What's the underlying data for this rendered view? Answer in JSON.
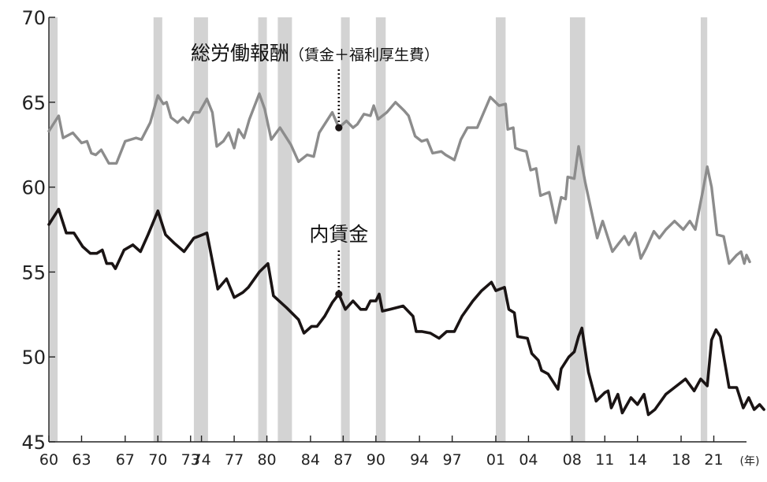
{
  "chart_data": {
    "type": "line",
    "x_unit": "(年)",
    "x_tick_labels": [
      "60",
      "63",
      "67",
      "70",
      "73",
      "74",
      "77",
      "80",
      "84",
      "87",
      "90",
      "94",
      "97",
      "01",
      "04",
      "08",
      "11",
      "14",
      "18",
      "21"
    ],
    "x_tick_years": [
      1960,
      1963,
      1967,
      1970,
      1973,
      1974,
      1977,
      1980,
      1984,
      1987,
      1990,
      1994,
      1997,
      2001,
      2004,
      2008,
      2011,
      2014,
      2018,
      2021
    ],
    "xlim": [
      1960,
      2024
    ],
    "ylim": [
      45,
      70
    ],
    "y_ticks": [
      45,
      50,
      55,
      60,
      65,
      70
    ],
    "recession_bands": [
      [
        1960.0,
        1960.8
      ],
      [
        1969.6,
        1970.4
      ],
      [
        1973.3,
        1974.6
      ],
      [
        1979.2,
        1980.0
      ],
      [
        1981.0,
        1982.3
      ],
      [
        1986.8,
        1987.6
      ],
      [
        1990.0,
        1990.9
      ],
      [
        2001.0,
        2001.9
      ],
      [
        2007.8,
        2009.2
      ],
      [
        2019.8,
        2020.4
      ]
    ],
    "series": [
      {
        "name": "総労働報酬",
        "name_suffix": "（賃金＋福利厚生費）",
        "color": "#8c8c8c",
        "points": [
          [
            1960.0,
            63.3
          ],
          [
            1960.9,
            64.2
          ],
          [
            1961.3,
            62.9
          ],
          [
            1962.2,
            63.2
          ],
          [
            1963.0,
            62.6
          ],
          [
            1963.5,
            62.7
          ],
          [
            1963.9,
            62.0
          ],
          [
            1964.3,
            61.9
          ],
          [
            1964.8,
            62.2
          ],
          [
            1965.5,
            61.4
          ],
          [
            1966.2,
            61.4
          ],
          [
            1967.0,
            62.7
          ],
          [
            1968.0,
            62.9
          ],
          [
            1968.5,
            62.8
          ],
          [
            1969.3,
            63.8
          ],
          [
            1970.0,
            65.4
          ],
          [
            1970.5,
            64.9
          ],
          [
            1970.8,
            65.0
          ],
          [
            1971.2,
            64.1
          ],
          [
            1971.8,
            63.8
          ],
          [
            1972.3,
            64.1
          ],
          [
            1972.8,
            63.8
          ],
          [
            1973.3,
            64.4
          ],
          [
            1973.8,
            64.4
          ],
          [
            1974.5,
            65.2
          ],
          [
            1975.0,
            64.4
          ],
          [
            1975.4,
            62.4
          ],
          [
            1976.0,
            62.7
          ],
          [
            1976.5,
            63.2
          ],
          [
            1977.0,
            62.3
          ],
          [
            1977.4,
            63.4
          ],
          [
            1977.9,
            62.9
          ],
          [
            1978.4,
            64.0
          ],
          [
            1979.3,
            65.5
          ],
          [
            1979.8,
            64.6
          ],
          [
            1980.4,
            62.8
          ],
          [
            1981.2,
            63.5
          ],
          [
            1982.2,
            62.5
          ],
          [
            1982.9,
            61.5
          ],
          [
            1983.7,
            61.9
          ],
          [
            1984.3,
            61.8
          ],
          [
            1984.8,
            63.2
          ],
          [
            1986.0,
            64.4
          ],
          [
            1986.6,
            63.5
          ],
          [
            1987.3,
            63.9
          ],
          [
            1987.9,
            63.5
          ],
          [
            1988.3,
            63.7
          ],
          [
            1988.9,
            64.3
          ],
          [
            1989.5,
            64.2
          ],
          [
            1989.8,
            64.8
          ],
          [
            1990.2,
            64.0
          ],
          [
            1991.0,
            64.4
          ],
          [
            1991.8,
            65.0
          ],
          [
            1992.6,
            64.5
          ],
          [
            1993.0,
            64.2
          ],
          [
            1993.6,
            63.0
          ],
          [
            1994.2,
            62.7
          ],
          [
            1994.7,
            62.8
          ],
          [
            1995.2,
            62.0
          ],
          [
            1996.0,
            62.1
          ],
          [
            1996.4,
            61.9
          ],
          [
            1997.2,
            61.6
          ],
          [
            1997.8,
            62.8
          ],
          [
            1998.4,
            63.5
          ],
          [
            1999.3,
            63.5
          ],
          [
            2000.5,
            65.3
          ],
          [
            2001.3,
            64.8
          ],
          [
            2001.9,
            64.9
          ],
          [
            2002.1,
            63.4
          ],
          [
            2002.6,
            63.5
          ],
          [
            2002.8,
            62.3
          ],
          [
            2003.2,
            62.2
          ],
          [
            2003.8,
            62.1
          ],
          [
            2004.2,
            61.0
          ],
          [
            2004.7,
            61.1
          ],
          [
            2005.1,
            59.5
          ],
          [
            2005.5,
            59.6
          ],
          [
            2005.9,
            59.7
          ],
          [
            2006.2,
            58.8
          ],
          [
            2006.5,
            57.9
          ],
          [
            2007.0,
            59.4
          ],
          [
            2007.4,
            59.3
          ],
          [
            2007.6,
            60.6
          ],
          [
            2008.2,
            60.5
          ],
          [
            2008.6,
            62.4
          ],
          [
            2009.2,
            60.3
          ],
          [
            2010.3,
            57.0
          ],
          [
            2010.8,
            58.0
          ],
          [
            2011.7,
            56.2
          ],
          [
            2012.3,
            56.7
          ],
          [
            2012.8,
            57.1
          ],
          [
            2013.2,
            56.6
          ],
          [
            2013.8,
            57.3
          ],
          [
            2014.3,
            55.8
          ],
          [
            2014.8,
            56.4
          ],
          [
            2015.5,
            57.4
          ],
          [
            2016.0,
            57.0
          ],
          [
            2016.6,
            57.5
          ],
          [
            2017.4,
            58.0
          ],
          [
            2018.2,
            57.5
          ],
          [
            2018.8,
            58.0
          ],
          [
            2019.3,
            57.5
          ],
          [
            2020.0,
            59.8
          ],
          [
            2020.4,
            61.2
          ],
          [
            2020.8,
            60.0
          ],
          [
            2021.3,
            57.2
          ],
          [
            2021.9,
            57.1
          ],
          [
            2022.4,
            55.5
          ],
          [
            2023.1,
            56.0
          ],
          [
            2023.5,
            56.2
          ],
          [
            2023.8,
            55.5
          ],
          [
            2024.0,
            56.0
          ],
          [
            2024.3,
            55.6
          ]
        ]
      },
      {
        "name": "内賃金",
        "color": "#1a1414",
        "points": [
          [
            1960.0,
            57.8
          ],
          [
            1960.9,
            58.7
          ],
          [
            1961.6,
            57.3
          ],
          [
            1962.3,
            57.3
          ],
          [
            1963.1,
            56.5
          ],
          [
            1963.8,
            56.1
          ],
          [
            1964.4,
            56.1
          ],
          [
            1964.9,
            56.3
          ],
          [
            1965.3,
            55.5
          ],
          [
            1965.8,
            55.5
          ],
          [
            1966.1,
            55.2
          ],
          [
            1966.9,
            56.3
          ],
          [
            1967.7,
            56.6
          ],
          [
            1968.4,
            56.2
          ],
          [
            1969.1,
            57.2
          ],
          [
            1970.0,
            58.6
          ],
          [
            1970.7,
            57.2
          ],
          [
            1971.5,
            56.7
          ],
          [
            1972.4,
            56.2
          ],
          [
            1973.3,
            57.0
          ],
          [
            1974.1,
            57.2
          ],
          [
            1974.5,
            57.3
          ],
          [
            1975.5,
            54.0
          ],
          [
            1976.3,
            54.6
          ],
          [
            1977.0,
            53.5
          ],
          [
            1977.8,
            53.8
          ],
          [
            1978.3,
            54.1
          ],
          [
            1979.3,
            55.0
          ],
          [
            1980.1,
            55.5
          ],
          [
            1980.6,
            53.6
          ],
          [
            1981.8,
            52.9
          ],
          [
            1982.9,
            52.2
          ],
          [
            1983.4,
            51.4
          ],
          [
            1984.1,
            51.8
          ],
          [
            1984.6,
            51.8
          ],
          [
            1985.3,
            52.4
          ],
          [
            1986.0,
            53.2
          ],
          [
            1986.6,
            53.7
          ],
          [
            1987.2,
            52.8
          ],
          [
            1987.9,
            53.3
          ],
          [
            1988.6,
            52.8
          ],
          [
            1989.1,
            52.8
          ],
          [
            1989.5,
            53.3
          ],
          [
            1990.0,
            53.3
          ],
          [
            1990.3,
            53.7
          ],
          [
            1990.6,
            52.7
          ],
          [
            1991.3,
            52.8
          ],
          [
            1992.5,
            53.0
          ],
          [
            1993.4,
            52.4
          ],
          [
            1993.7,
            51.5
          ],
          [
            1994.2,
            51.5
          ],
          [
            1995.0,
            51.4
          ],
          [
            1995.8,
            51.1
          ],
          [
            1996.5,
            51.5
          ],
          [
            1997.2,
            51.5
          ],
          [
            1997.9,
            52.4
          ],
          [
            1998.9,
            53.3
          ],
          [
            1999.7,
            53.9
          ],
          [
            2000.6,
            54.4
          ],
          [
            2001.0,
            53.9
          ],
          [
            2001.8,
            54.1
          ],
          [
            2002.2,
            52.8
          ],
          [
            2002.7,
            52.6
          ],
          [
            2003.0,
            51.2
          ],
          [
            2003.9,
            51.1
          ],
          [
            2004.3,
            50.2
          ],
          [
            2004.9,
            49.8
          ],
          [
            2005.2,
            49.2
          ],
          [
            2005.8,
            49.0
          ],
          [
            2006.5,
            48.3
          ],
          [
            2006.7,
            48.1
          ],
          [
            2007.0,
            49.3
          ],
          [
            2007.7,
            50.0
          ],
          [
            2008.2,
            50.3
          ],
          [
            2008.6,
            51.2
          ],
          [
            2008.9,
            51.7
          ],
          [
            2009.5,
            49.1
          ],
          [
            2010.2,
            47.4
          ],
          [
            2011.0,
            47.9
          ],
          [
            2011.3,
            48.0
          ],
          [
            2011.6,
            47.0
          ],
          [
            2012.2,
            47.8
          ],
          [
            2012.6,
            46.7
          ],
          [
            2013.4,
            47.6
          ],
          [
            2014.0,
            47.2
          ],
          [
            2014.6,
            47.8
          ],
          [
            2015.0,
            46.6
          ],
          [
            2015.6,
            46.9
          ],
          [
            2016.6,
            47.8
          ],
          [
            2017.4,
            48.2
          ],
          [
            2018.4,
            48.7
          ],
          [
            2019.2,
            48.0
          ],
          [
            2019.8,
            48.7
          ],
          [
            2020.4,
            48.3
          ],
          [
            2020.8,
            51.0
          ],
          [
            2021.2,
            51.6
          ],
          [
            2021.6,
            51.2
          ],
          [
            2022.4,
            48.2
          ],
          [
            2023.1,
            48.2
          ],
          [
            2023.7,
            47.0
          ],
          [
            2024.2,
            47.6
          ],
          [
            2024.7,
            46.9
          ],
          [
            2025.2,
            47.2
          ],
          [
            2025.6,
            46.9
          ]
        ]
      }
    ]
  }
}
